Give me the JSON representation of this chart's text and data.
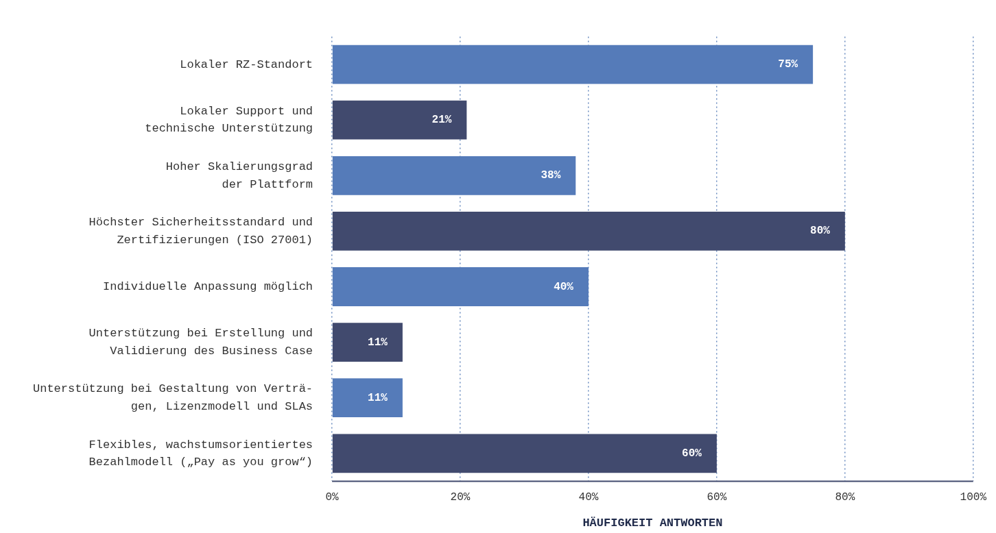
{
  "chart_data": {
    "type": "bar",
    "orientation": "horizontal",
    "categories": [
      "Lokaler RZ-Standort",
      "Lokaler Support und\ntechnische Unterstützung",
      "Hoher Skalierungsgrad\nder Plattform",
      "Höchster Sicherheitsstandard und\nZertifizierungen (ISO 27001)",
      "Individuelle Anpassung möglich",
      "Unterstützung bei Erstellung und\nValidierung des Business Case",
      "Unterstützung bei Gestaltung von Verträ-\ngen, Lizenzmodell und SLAs",
      "Flexibles, wachstumsorientiertes\nBezahlmodell („Pay as you grow“)"
    ],
    "values": [
      75,
      21,
      38,
      80,
      40,
      11,
      11,
      60
    ],
    "colors": [
      "#557bb9",
      "#414a6e",
      "#557bb9",
      "#414a6e",
      "#557bb9",
      "#414a6e",
      "#557bb9",
      "#414a6e"
    ],
    "value_labels": [
      "75%",
      "21%",
      "38%",
      "80%",
      "40%",
      "11%",
      "11%",
      "60%"
    ],
    "xlabel": "HÄUFIGKEIT ANTWORTEN",
    "xlim": [
      0,
      100
    ],
    "xticks": [
      {
        "value": 0,
        "label": "0%"
      },
      {
        "value": 20,
        "label": "20%"
      },
      {
        "value": 40,
        "label": "40%"
      },
      {
        "value": 60,
        "label": "60%"
      },
      {
        "value": 80,
        "label": "80%"
      },
      {
        "value": 100,
        "label": "100%"
      }
    ],
    "grid": "x",
    "legend": false
  }
}
